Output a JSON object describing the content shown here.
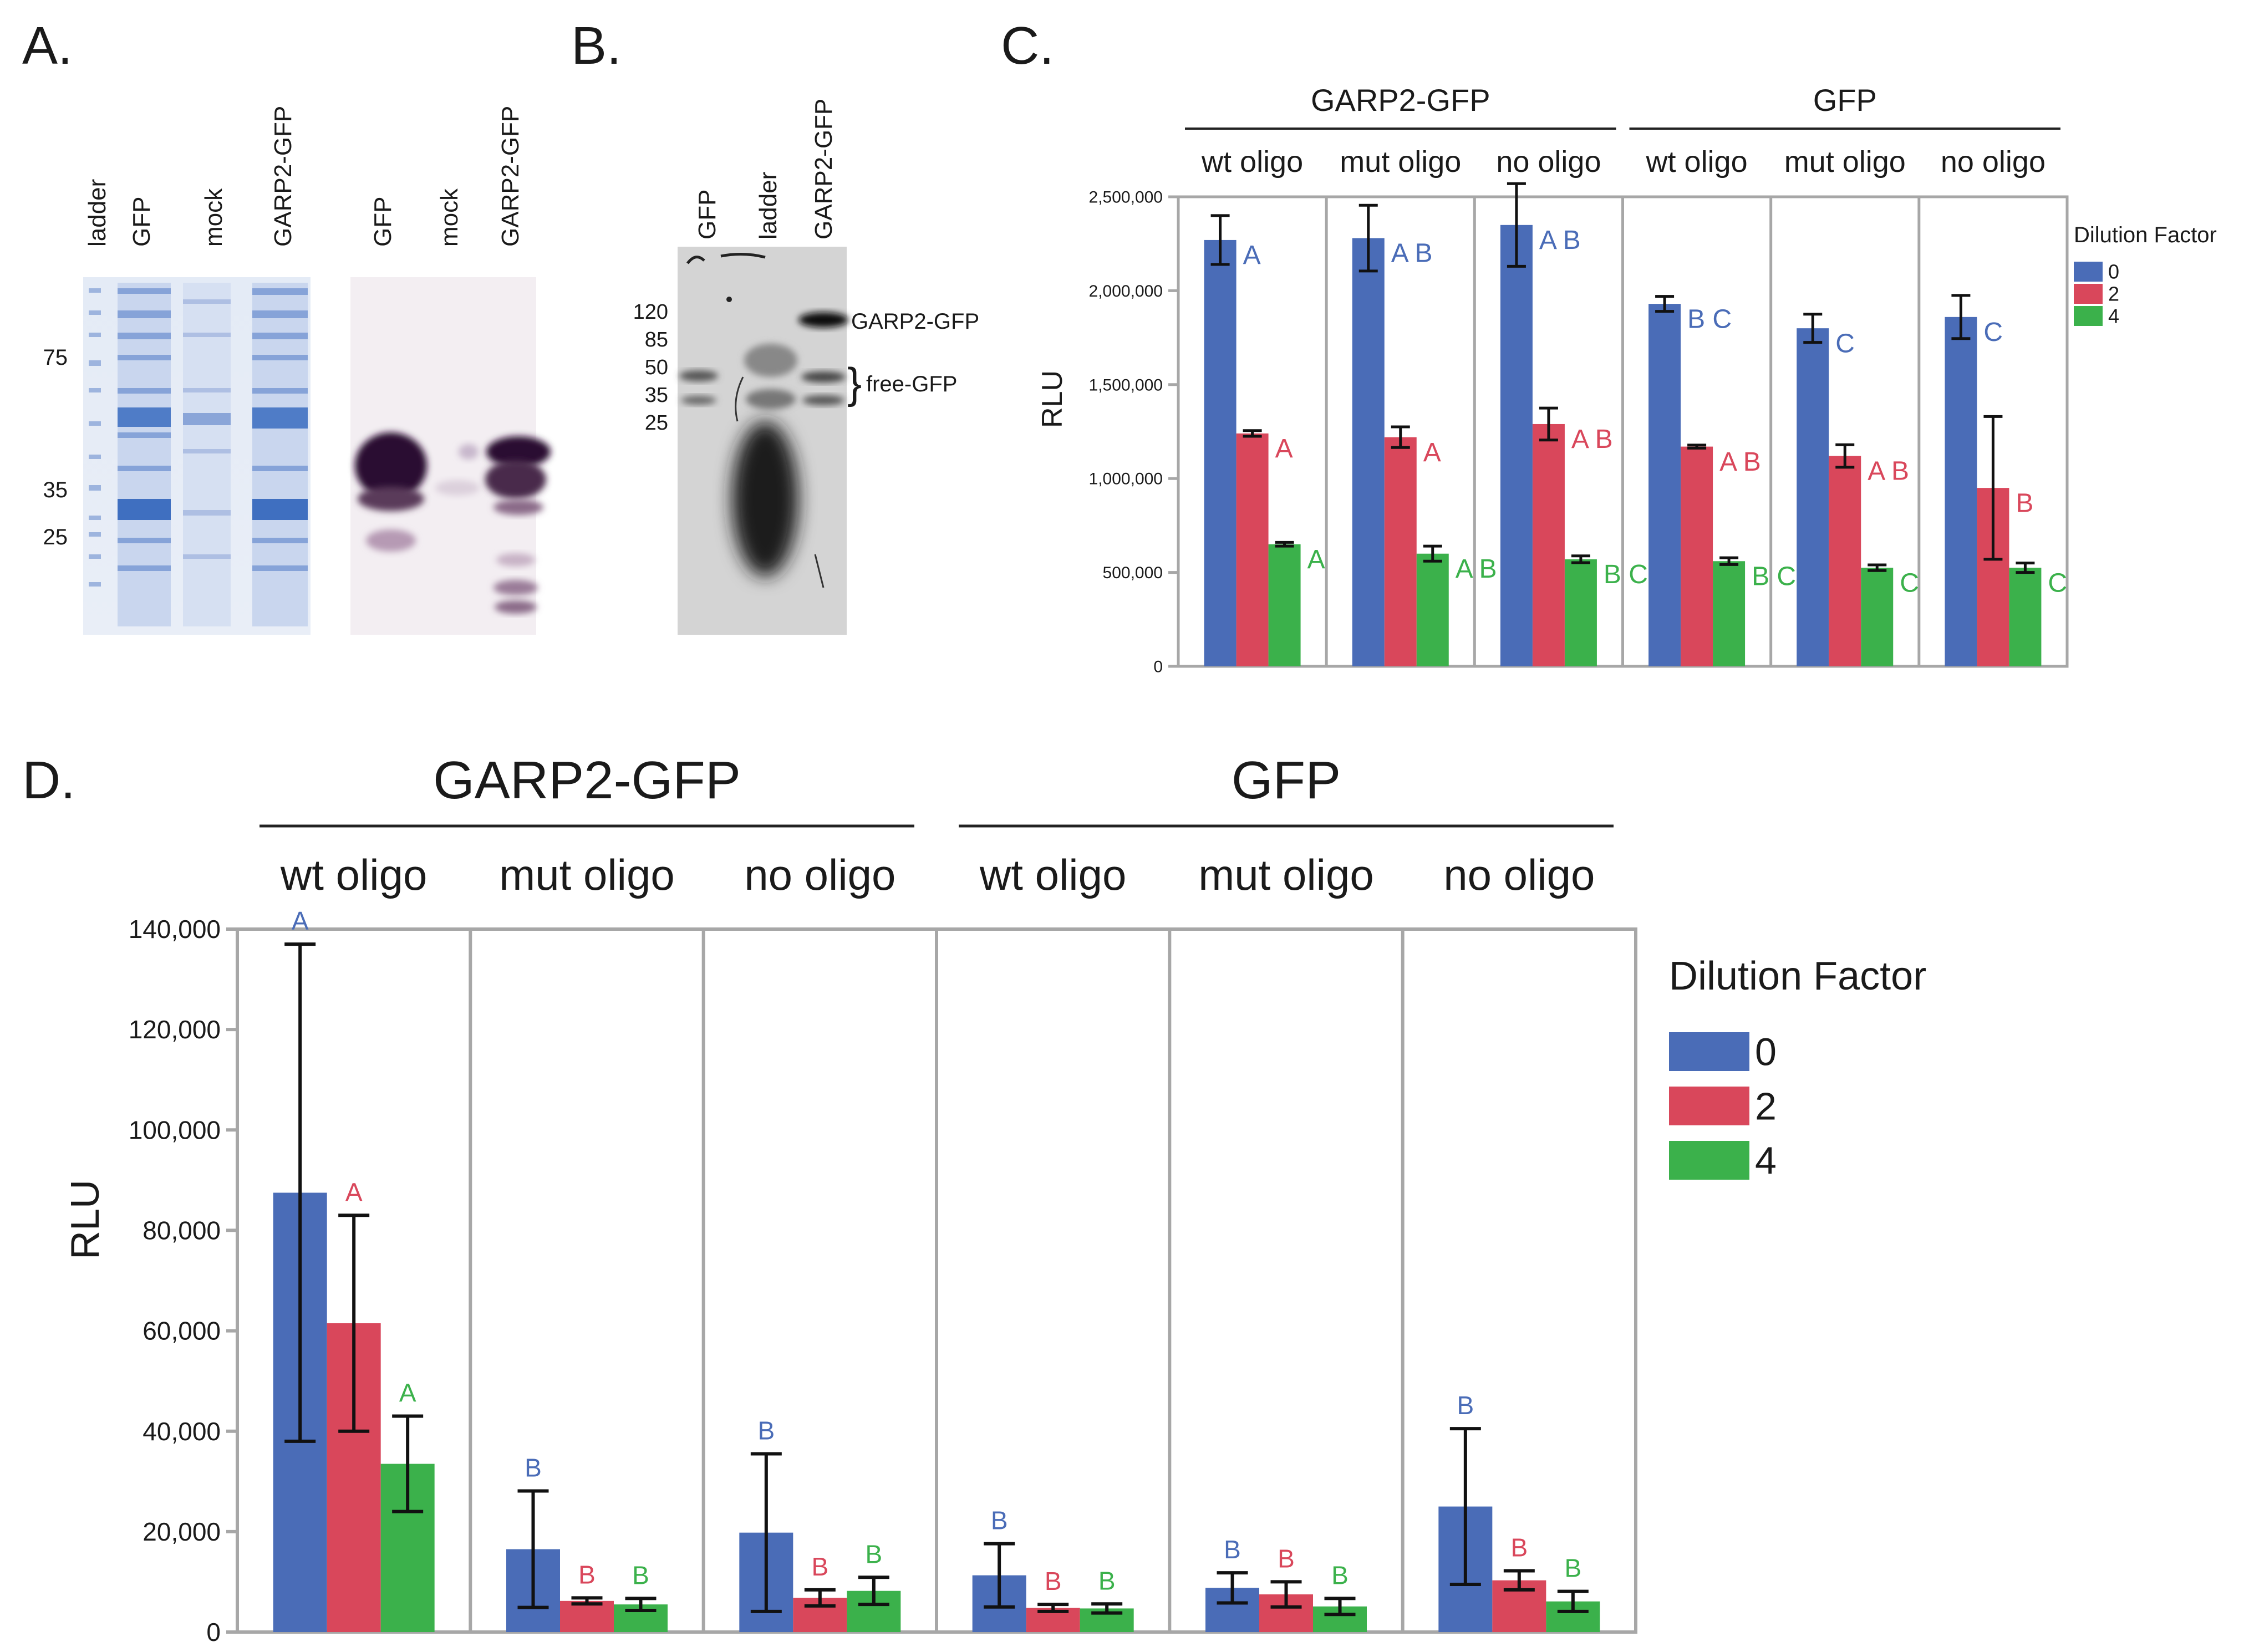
{
  "colors": {
    "blue": "#4a6cb7",
    "red": "#d9475b",
    "green": "#3bb14b",
    "frame": "#a7a7a7",
    "err": "#111111",
    "gelBlue": "#8fa9d9",
    "blot": "#2a1030"
  },
  "panelA": {
    "label": "A.",
    "lanes1": [
      "ladder",
      "GFP",
      "mock",
      "GARP2-GFP"
    ],
    "lanes2": [
      "GFP",
      "mock",
      "GARP2-GFP"
    ],
    "markers": [
      "75",
      "35",
      "25"
    ]
  },
  "panelB": {
    "label": "B.",
    "lanes": [
      "GFP",
      "ladder",
      "GARP2-GFP"
    ],
    "markers": [
      "120",
      "85",
      "50",
      "35",
      "25"
    ],
    "annotations": {
      "garp": "GARP2-GFP",
      "free": "free-GFP"
    }
  },
  "chart_data": [
    {
      "type": "bar",
      "panel": "C.",
      "ylabel": "RLU",
      "ylim": [
        0,
        2500000
      ],
      "yticks": [
        0,
        500000,
        1000000,
        1500000,
        2000000,
        2500000
      ],
      "ytick_labels": [
        "0",
        "500,000",
        "1,000,000",
        "1,500,000",
        "2,000,000",
        "2,500,000"
      ],
      "groups": [
        {
          "name": "GARP2-GFP",
          "span": [
            0,
            2
          ]
        },
        {
          "name": "GFP",
          "span": [
            3,
            5
          ]
        }
      ],
      "categories": [
        "wt oligo",
        "mut oligo",
        "no oligo",
        "wt oligo",
        "mut oligo",
        "no oligo"
      ],
      "legend": {
        "title": "Dilution Factor",
        "entries": [
          "0",
          "2",
          "4"
        ]
      },
      "series": [
        {
          "name": "0",
          "values": [
            2270000,
            2280000,
            2350000,
            1930000,
            1800000,
            1860000
          ],
          "err": [
            130000,
            175000,
            220000,
            40000,
            75000,
            115000
          ],
          "letters": [
            "A",
            "A B",
            "A B",
            "B C",
            "C",
            "C"
          ]
        },
        {
          "name": "2",
          "values": [
            1240000,
            1220000,
            1290000,
            1170000,
            1120000,
            950000
          ],
          "err": [
            15000,
            55000,
            85000,
            8000,
            60000,
            380000
          ],
          "letters": [
            "A",
            "A",
            "A B",
            "A B",
            "A B",
            "B"
          ]
        },
        {
          "name": "4",
          "values": [
            650000,
            600000,
            570000,
            560000,
            525000,
            525000
          ],
          "err": [
            10000,
            40000,
            18000,
            18000,
            15000,
            25000
          ],
          "letters": [
            "A",
            "A B",
            "B C",
            "B C",
            "C",
            "C"
          ]
        }
      ]
    },
    {
      "type": "bar",
      "panel": "D.",
      "ylabel": "RLU",
      "ylim": [
        0,
        140000
      ],
      "yticks": [
        0,
        20000,
        40000,
        60000,
        80000,
        100000,
        120000,
        140000
      ],
      "ytick_labels": [
        "0",
        "20,000",
        "40,000",
        "60,000",
        "80,000",
        "100,000",
        "120,000",
        "140,000"
      ],
      "groups": [
        {
          "name": "GARP2-GFP",
          "span": [
            0,
            2
          ]
        },
        {
          "name": "GFP",
          "span": [
            3,
            5
          ]
        }
      ],
      "categories": [
        "wt oligo",
        "mut oligo",
        "no oligo",
        "wt oligo",
        "mut oligo",
        "no oligo"
      ],
      "legend": {
        "title": "Dilution Factor",
        "entries": [
          "0",
          "2",
          "4"
        ]
      },
      "series": [
        {
          "name": "0",
          "values": [
            87500,
            16500,
            19800,
            11300,
            8800,
            25000
          ],
          "err": [
            49500,
            11600,
            15700,
            6300,
            3000,
            15500
          ],
          "letters": [
            "A",
            "B",
            "B",
            "B",
            "B",
            "B"
          ]
        },
        {
          "name": "2",
          "values": [
            61500,
            6200,
            6800,
            4800,
            7500,
            10300
          ],
          "err": [
            21500,
            600,
            1600,
            700,
            2500,
            1900
          ],
          "letters": [
            "A",
            "B",
            "B",
            "B",
            "B",
            "B"
          ]
        },
        {
          "name": "4",
          "values": [
            33500,
            5500,
            8200,
            4700,
            5100,
            6100
          ],
          "err": [
            9500,
            1200,
            2700,
            900,
            1600,
            2000
          ],
          "letters": [
            "A",
            "B",
            "B",
            "B",
            "B",
            "B"
          ]
        }
      ]
    }
  ]
}
